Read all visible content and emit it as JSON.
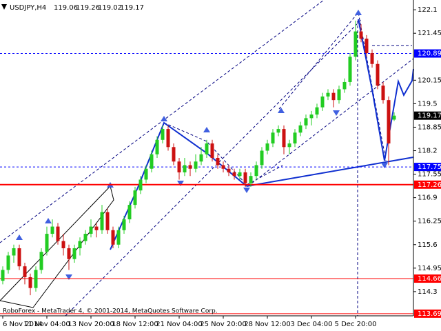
{
  "header": {
    "symbol": "USDJPY,H4",
    "ohlc": [
      119.06,
      119.26,
      119.02,
      119.17
    ]
  },
  "footer": "RoboForex - MetaTrader 4, © 2001-2014, MetaQuotes Software Corp.",
  "chart_data": {
    "type": "candlestick",
    "bull_color": "#22cc22",
    "bear_color": "#cc1111",
    "xlim": [
      -0.5,
      74.5
    ],
    "ylim": [
      113.63,
      122.37
    ],
    "yticks": [
      122.1,
      121.45,
      120.15,
      119.5,
      118.85,
      118.2,
      117.55,
      116.9,
      116.25,
      115.6,
      114.95,
      114.3
    ],
    "levels": [
      {
        "value": 120.89,
        "color": "#0000ff",
        "style": "dashed"
      },
      {
        "value": 119.17,
        "color": "#000000",
        "style": "none"
      },
      {
        "value": 117.75,
        "color": "#0000ff",
        "style": "dashed"
      },
      {
        "value": 117.26,
        "color": "#ff0000",
        "style": "thick"
      },
      {
        "value": 114.66,
        "color": "#ff0000",
        "style": "solid"
      },
      {
        "value": 113.69,
        "color": "#ff0000",
        "style": "solid"
      }
    ],
    "categories": [
      "6 Nov 2014",
      null,
      null,
      null,
      null,
      null,
      null,
      null,
      "11 Nov 04:00",
      null,
      null,
      null,
      null,
      null,
      null,
      null,
      "13 Nov 20:00",
      null,
      null,
      null,
      null,
      null,
      null,
      null,
      "18 Nov 12:00",
      null,
      null,
      null,
      null,
      null,
      null,
      null,
      "21 Nov 04:00",
      null,
      null,
      null,
      null,
      null,
      null,
      null,
      "25 Nov 20:00",
      null,
      null,
      null,
      null,
      null,
      null,
      null,
      "28 Nov 12:00",
      null,
      null,
      null,
      null,
      null,
      null,
      null,
      "3 Dec 04:00",
      null,
      null,
      null,
      null,
      null,
      null,
      null,
      "5 Dec 20:00",
      null,
      null,
      null,
      null,
      null,
      null,
      null
    ],
    "ohlc": [
      [
        114.6,
        115.0,
        114.5,
        114.9
      ],
      [
        114.9,
        115.4,
        114.8,
        115.3
      ],
      [
        115.3,
        115.6,
        115.1,
        115.5
      ],
      [
        115.5,
        115.6,
        114.9,
        115.0
      ],
      [
        115.0,
        115.1,
        114.5,
        114.7
      ],
      [
        114.7,
        114.8,
        114.2,
        114.4
      ],
      [
        114.4,
        115.0,
        114.3,
        114.9
      ],
      [
        114.9,
        115.5,
        114.8,
        115.4
      ],
      [
        115.4,
        116.1,
        115.3,
        115.9
      ],
      [
        115.9,
        116.3,
        115.8,
        116.1
      ],
      [
        116.1,
        116.2,
        115.6,
        115.7
      ],
      [
        115.7,
        115.9,
        115.3,
        115.5
      ],
      [
        115.5,
        115.6,
        114.9,
        115.2
      ],
      [
        115.2,
        115.6,
        115.1,
        115.5
      ],
      [
        115.5,
        115.8,
        115.3,
        115.7
      ],
      [
        115.7,
        116.0,
        115.6,
        115.9
      ],
      [
        115.9,
        116.3,
        115.8,
        116.1
      ],
      [
        116.1,
        116.2,
        115.8,
        116.0
      ],
      [
        116.0,
        116.7,
        115.9,
        116.5
      ],
      [
        116.5,
        116.6,
        115.9,
        116.0
      ],
      [
        116.0,
        116.1,
        115.5,
        115.6
      ],
      [
        115.6,
        116.1,
        115.5,
        116.0
      ],
      [
        116.0,
        116.4,
        115.9,
        116.3
      ],
      [
        116.3,
        116.8,
        116.2,
        116.7
      ],
      [
        116.7,
        117.2,
        116.6,
        117.1
      ],
      [
        117.1,
        117.5,
        117.0,
        117.4
      ],
      [
        117.4,
        117.8,
        117.3,
        117.7
      ],
      [
        117.7,
        118.2,
        117.6,
        118.1
      ],
      [
        118.1,
        118.6,
        118.0,
        118.5
      ],
      [
        118.5,
        118.9,
        118.4,
        118.8
      ],
      [
        118.8,
        118.9,
        118.2,
        118.3
      ],
      [
        118.3,
        118.4,
        117.8,
        117.9
      ],
      [
        117.9,
        118.0,
        117.4,
        117.6
      ],
      [
        117.6,
        118.0,
        117.5,
        117.8
      ],
      [
        117.8,
        117.9,
        117.5,
        117.7
      ],
      [
        117.7,
        118.1,
        117.6,
        117.9
      ],
      [
        117.9,
        118.3,
        117.8,
        118.1
      ],
      [
        118.1,
        118.5,
        118.0,
        118.4
      ],
      [
        118.4,
        118.5,
        117.9,
        118.0
      ],
      [
        118.0,
        118.1,
        117.7,
        117.8
      ],
      [
        117.8,
        117.9,
        117.6,
        117.7
      ],
      [
        117.7,
        117.8,
        117.5,
        117.6
      ],
      [
        117.6,
        117.7,
        117.4,
        117.5
      ],
      [
        117.5,
        117.7,
        117.4,
        117.6
      ],
      [
        117.6,
        117.7,
        117.2,
        117.3
      ],
      [
        117.3,
        117.6,
        117.2,
        117.5
      ],
      [
        117.5,
        117.9,
        117.4,
        117.8
      ],
      [
        117.8,
        118.3,
        117.7,
        118.2
      ],
      [
        118.2,
        118.5,
        118.1,
        118.4
      ],
      [
        118.4,
        118.8,
        118.3,
        118.7
      ],
      [
        118.7,
        118.9,
        118.6,
        118.8
      ],
      [
        118.8,
        118.9,
        118.1,
        118.3
      ],
      [
        118.3,
        118.5,
        118.1,
        118.4
      ],
      [
        118.4,
        118.8,
        118.3,
        118.7
      ],
      [
        118.7,
        119.0,
        118.6,
        118.9
      ],
      [
        118.9,
        119.2,
        118.8,
        119.1
      ],
      [
        119.1,
        119.3,
        118.9,
        119.2
      ],
      [
        119.2,
        119.5,
        119.1,
        119.4
      ],
      [
        119.4,
        119.8,
        119.3,
        119.7
      ],
      [
        119.7,
        119.9,
        119.6,
        119.8
      ],
      [
        119.8,
        119.9,
        119.4,
        119.6
      ],
      [
        119.6,
        120.0,
        119.5,
        119.9
      ],
      [
        119.9,
        120.2,
        119.8,
        120.1
      ],
      [
        120.1,
        120.9,
        120.0,
        120.8
      ],
      [
        120.8,
        121.8,
        120.7,
        121.5
      ],
      [
        121.5,
        121.7,
        121.2,
        121.3
      ],
      [
        121.3,
        121.4,
        120.8,
        120.9
      ],
      [
        120.9,
        121.0,
        120.5,
        120.6
      ],
      [
        120.6,
        120.7,
        119.9,
        120.0
      ],
      [
        120.0,
        120.1,
        119.5,
        119.6
      ],
      [
        119.6,
        119.7,
        117.8,
        118.4
      ],
      [
        119.06,
        119.26,
        119.02,
        119.17
      ]
    ]
  }
}
